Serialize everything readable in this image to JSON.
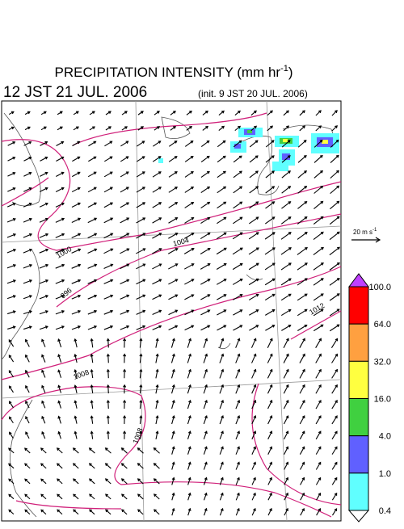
{
  "header": {
    "title": "PRECIPITATION INTENSITY (mm hr",
    "title_exponent": "-1",
    "title_close": ")",
    "valid_time": "12 JST 21 JUL. 2006",
    "init_time": "(init. 9 JST 20 JUL. 2006)"
  },
  "wind_legend": {
    "label": "20 m s",
    "exponent": "-1"
  },
  "contour_labels": [
    "1000",
    "996",
    "1004",
    "1008",
    "1008",
    "1012"
  ],
  "colorbar": {
    "levels": [
      {
        "label": "100.0",
        "color": "#ff0000"
      },
      {
        "label": "64.0",
        "color": "#ffa040"
      },
      {
        "label": "32.0",
        "color": "#ffff40"
      },
      {
        "label": "16.0",
        "color": "#40d040"
      },
      {
        "label": "4.0",
        "color": "#6060ff"
      },
      {
        "label": "1.0",
        "color": "#60ffff"
      },
      {
        "label": "0.4",
        "color": null
      }
    ],
    "top_color": "#c040ff"
  }
}
